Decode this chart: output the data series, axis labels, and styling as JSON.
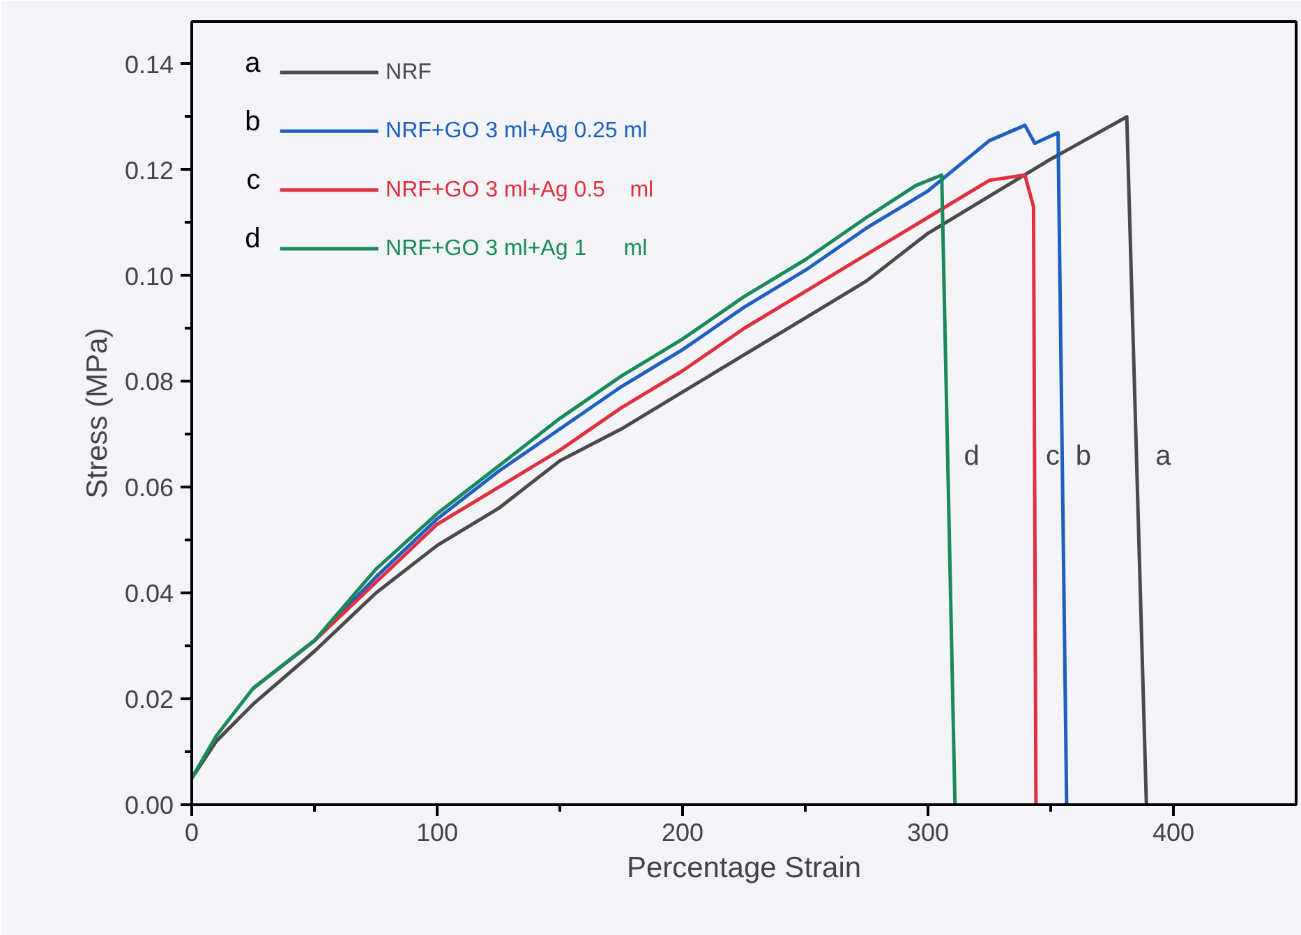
{
  "chart_data": {
    "type": "line",
    "xlabel": "Percentage Strain",
    "ylabel": "Stress (MPa)",
    "xlim": [
      0,
      450
    ],
    "ylim": [
      0,
      0.148
    ],
    "xticks": [
      0,
      {
        "value": 50,
        "label": null
      },
      100,
      {
        "value": 150,
        "label": null
      },
      200,
      {
        "value": 250,
        "label": null
      },
      300,
      {
        "value": 350,
        "label": null
      },
      400
    ],
    "yticks": [
      {
        "value": 0,
        "label": "0.00"
      },
      {
        "value": 0.01,
        "label": null
      },
      {
        "value": 0.02,
        "label": "0.02"
      },
      {
        "value": 0.03,
        "label": null
      },
      {
        "value": 0.04,
        "label": "0.04"
      },
      {
        "value": 0.05,
        "label": null
      },
      {
        "value": 0.06,
        "label": "0.06"
      },
      {
        "value": 0.07,
        "label": null
      },
      {
        "value": 0.08,
        "label": "0.08"
      },
      {
        "value": 0.09,
        "label": null
      },
      {
        "value": 0.1,
        "label": "0.10"
      },
      {
        "value": 0.11,
        "label": null
      },
      {
        "value": 0.12,
        "label": "0.12"
      },
      {
        "value": 0.13,
        "label": null
      },
      {
        "value": 0.14,
        "label": "0.14"
      }
    ],
    "grid": false,
    "legend": "top left",
    "marker": "none",
    "line_style": "solid",
    "series": [
      {
        "name": "NRF",
        "color": "#4a4a4a",
        "x": [
          0,
          10,
          25,
          50,
          75,
          100,
          125,
          150,
          175,
          200,
          225,
          250,
          275,
          300,
          325,
          350,
          381,
          389
        ],
        "values": [
          0.005,
          0.012,
          0.019,
          0.029,
          0.04,
          0.049,
          0.056,
          0.065,
          0.071,
          0.078,
          0.085,
          0.092,
          0.099,
          0.108,
          0.115,
          0.122,
          0.13,
          0
        ]
      },
      {
        "name": "NRF+GO 3 ml+Ag 0.25 ml",
        "color": "#1f5fbf",
        "x": [
          25,
          50,
          75,
          100,
          125,
          150,
          175,
          200,
          225,
          250,
          275,
          300,
          325,
          339.5,
          343.5,
          353,
          356.5
        ],
        "values": [
          0.022,
          0.031,
          0.043,
          0.054,
          0.063,
          0.071,
          0.079,
          0.086,
          0.094,
          0.101,
          0.109,
          0.116,
          0.1255,
          0.1284,
          0.125,
          0.127,
          0
        ]
      },
      {
        "name": "NRF+GO 3 ml+Ag 0.5    ml",
        "color": "#e03040",
        "x": [
          25,
          50,
          75,
          100,
          125,
          150,
          175,
          200,
          225,
          250,
          275,
          300,
          325,
          339.5,
          343,
          344
        ],
        "values": [
          0.022,
          0.031,
          0.042,
          0.053,
          0.06,
          0.067,
          0.075,
          0.082,
          0.09,
          0.097,
          0.104,
          0.111,
          0.118,
          0.119,
          0.113,
          0
        ]
      },
      {
        "name": "NRF+GO 3 ml+Ag 1      ml",
        "color": "#1a8a5a",
        "x": [
          0,
          10,
          25,
          50,
          75,
          100,
          125,
          150,
          175,
          200,
          225,
          250,
          275,
          295,
          305.6,
          311
        ],
        "values": [
          0.005,
          0.013,
          0.022,
          0.031,
          0.0445,
          0.055,
          0.064,
          0.073,
          0.081,
          0.088,
          0.096,
          0.103,
          0.111,
          0.117,
          0.119,
          0
        ]
      }
    ],
    "annotations": [
      "a",
      "b",
      "c",
      "d",
      "a",
      "b",
      "c",
      "d"
    ]
  }
}
